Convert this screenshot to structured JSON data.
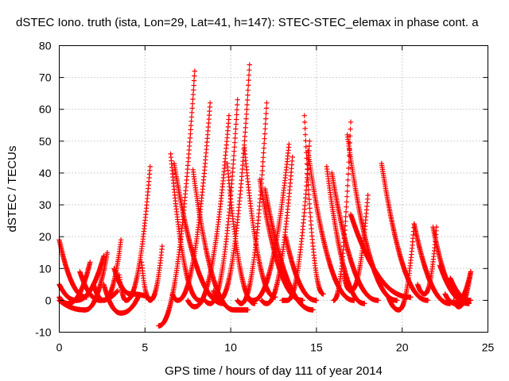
{
  "chart_data": {
    "type": "scatter",
    "title": "dSTEC Iono. truth (ista, Lon=29, Lat=41, h=147): STEC-STEC_elemax in phase cont. a",
    "xlabel": "GPS time / hours of day 111 of year 2014",
    "ylabel": "dSTEC  / TECUs",
    "xlim": [
      0,
      25
    ],
    "ylim": [
      -10,
      80
    ],
    "x_ticks": [
      0,
      5,
      10,
      15,
      20,
      25
    ],
    "y_ticks": [
      -10,
      0,
      10,
      20,
      30,
      40,
      50,
      60,
      70,
      80
    ],
    "grid": true,
    "marker": "+",
    "color": "#ff0000",
    "arcs": [
      {
        "start": 0.0,
        "end": 1.6,
        "y_start": 19,
        "y_end": 1,
        "min_at": 1.6,
        "y_min": 1
      },
      {
        "start": 0.0,
        "end": 2.6,
        "y_start": 5,
        "y_end": 14,
        "min_at": 1.0,
        "y_min": 0
      },
      {
        "start": 0.0,
        "end": 1.8,
        "y_start": 1,
        "y_end": 12,
        "min_at": 0.5,
        "y_min": -1
      },
      {
        "start": 0.0,
        "end": 2.8,
        "y_start": 0,
        "y_end": 15,
        "min_at": 1.5,
        "y_min": -3
      },
      {
        "start": 1.2,
        "end": 3.4,
        "y_start": 9,
        "y_end": 3,
        "min_at": 2.4,
        "y_min": 0
      },
      {
        "start": 2.0,
        "end": 3.6,
        "y_start": 5,
        "y_end": 19,
        "min_at": 2.6,
        "y_min": 0
      },
      {
        "start": 2.6,
        "end": 4.6,
        "y_start": 5,
        "y_end": 1,
        "min_at": 3.6,
        "y_min": -4
      },
      {
        "start": 3.2,
        "end": 5.2,
        "y_start": 10,
        "y_end": 1,
        "min_at": 4.2,
        "y_min": 2
      },
      {
        "start": 3.5,
        "end": 5.3,
        "y_start": 8,
        "y_end": 42,
        "min_at": 3.9,
        "y_min": 0
      },
      {
        "start": 4.8,
        "end": 6.0,
        "y_start": 12,
        "y_end": 17,
        "min_at": 5.3,
        "y_min": 0
      },
      {
        "start": 5.8,
        "end": 7.9,
        "y_start": -8,
        "y_end": 72,
        "min_at": 5.8,
        "y_min": -8
      },
      {
        "start": 6.5,
        "end": 8.2,
        "y_start": 46,
        "y_end": 0,
        "min_at": 8.2,
        "y_min": 0
      },
      {
        "start": 6.6,
        "end": 8.8,
        "y_start": 2,
        "y_end": 62,
        "min_at": 6.9,
        "y_min": 0
      },
      {
        "start": 6.7,
        "end": 9.6,
        "y_start": 43,
        "y_end": -1,
        "min_at": 9.6,
        "y_min": -1
      },
      {
        "start": 7.5,
        "end": 9.9,
        "y_start": 0,
        "y_end": 58,
        "min_at": 7.9,
        "y_min": -2
      },
      {
        "start": 7.8,
        "end": 11.0,
        "y_start": 41,
        "y_end": -3,
        "min_at": 10.2,
        "y_min": -3
      },
      {
        "start": 8.5,
        "end": 10.4,
        "y_start": 0,
        "y_end": 63,
        "min_at": 8.8,
        "y_min": -1
      },
      {
        "start": 9.0,
        "end": 11.1,
        "y_start": 3,
        "y_end": 74,
        "min_at": 9.3,
        "y_min": 0
      },
      {
        "start": 9.8,
        "end": 11.4,
        "y_start": 43,
        "y_end": -1,
        "min_at": 11.4,
        "y_min": -1
      },
      {
        "start": 10.4,
        "end": 12.1,
        "y_start": 0,
        "y_end": 62,
        "min_at": 10.6,
        "y_min": -1
      },
      {
        "start": 10.8,
        "end": 12.6,
        "y_start": 48,
        "y_end": 1,
        "min_at": 12.6,
        "y_min": 1
      },
      {
        "start": 11.0,
        "end": 13.4,
        "y_start": 1,
        "y_end": 49,
        "min_at": 11.3,
        "y_min": 0
      },
      {
        "start": 11.7,
        "end": 14.2,
        "y_start": 38,
        "y_end": 0,
        "min_at": 14.2,
        "y_min": 0
      },
      {
        "start": 11.8,
        "end": 13.6,
        "y_start": 0,
        "y_end": 45,
        "min_at": 12.1,
        "y_min": -1
      },
      {
        "start": 12.0,
        "end": 14.8,
        "y_start": 35,
        "y_end": -3,
        "min_at": 14.8,
        "y_min": -3
      },
      {
        "start": 13.0,
        "end": 14.6,
        "y_start": 0,
        "y_end": 50,
        "min_at": 13.3,
        "y_min": 0
      },
      {
        "start": 13.2,
        "end": 15.0,
        "y_start": 20,
        "y_end": 0,
        "min_at": 15.0,
        "y_min": 0
      },
      {
        "start": 14.3,
        "end": 15.4,
        "y_start": 58,
        "y_end": 2,
        "min_at": 15.4,
        "y_min": 2
      },
      {
        "start": 14.5,
        "end": 17.2,
        "y_start": 47,
        "y_end": 0,
        "min_at": 17.2,
        "y_min": 0
      },
      {
        "start": 15.6,
        "end": 17.8,
        "y_start": 42,
        "y_end": -1,
        "min_at": 17.8,
        "y_min": -1
      },
      {
        "start": 15.9,
        "end": 18.6,
        "y_start": 40,
        "y_end": 0,
        "min_at": 18.6,
        "y_min": 0
      },
      {
        "start": 16.0,
        "end": 17.0,
        "y_start": 0,
        "y_end": 56,
        "min_at": 16.0,
        "y_min": 0
      },
      {
        "start": 16.6,
        "end": 18.0,
        "y_start": 8,
        "y_end": 33,
        "min_at": 17.0,
        "y_min": 3
      },
      {
        "start": 16.8,
        "end": 19.7,
        "y_start": 52,
        "y_end": 0,
        "min_at": 19.7,
        "y_min": 0
      },
      {
        "start": 17.0,
        "end": 20.5,
        "y_start": 27,
        "y_end": 1,
        "min_at": 20.5,
        "y_min": 1
      },
      {
        "start": 18.8,
        "end": 21.5,
        "y_start": 43,
        "y_end": 0,
        "min_at": 21.5,
        "y_min": 0
      },
      {
        "start": 19.2,
        "end": 20.7,
        "y_start": 1,
        "y_end": 24,
        "min_at": 19.8,
        "y_min": -3
      },
      {
        "start": 20.7,
        "end": 22.8,
        "y_start": 24,
        "y_end": -1,
        "min_at": 22.8,
        "y_min": -1
      },
      {
        "start": 20.9,
        "end": 22.0,
        "y_start": 5,
        "y_end": 23,
        "min_at": 21.3,
        "y_min": 2
      },
      {
        "start": 21.8,
        "end": 23.6,
        "y_start": 23,
        "y_end": 0,
        "min_at": 23.6,
        "y_min": 0
      },
      {
        "start": 22.2,
        "end": 23.9,
        "y_start": 11,
        "y_end": -1,
        "min_at": 23.9,
        "y_min": -1
      },
      {
        "start": 22.5,
        "end": 24.0,
        "y_start": 2,
        "y_end": 9,
        "min_at": 23.1,
        "y_min": -1
      },
      {
        "start": 22.8,
        "end": 24.0,
        "y_start": 7,
        "y_end": 0,
        "min_at": 24.0,
        "y_min": 0
      },
      {
        "start": 23.0,
        "end": 24.0,
        "y_start": 0,
        "y_end": 9,
        "min_at": 23.3,
        "y_min": -2
      }
    ]
  }
}
